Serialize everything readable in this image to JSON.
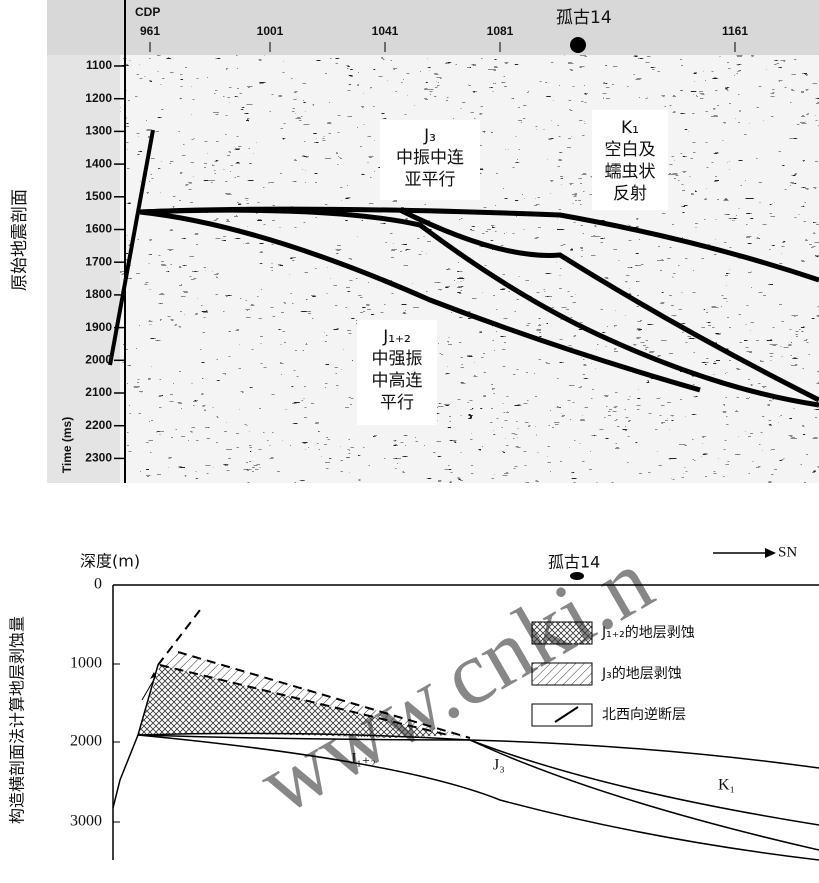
{
  "seismic": {
    "cdp_label": "CDP",
    "cdp_ticks": [
      "961",
      "1001",
      "1041",
      "1081",
      "1161"
    ],
    "well": "孤古14",
    "y_title": "原始地震剖面",
    "time_label": "Time (ms)",
    "time_ticks": [
      "1100",
      "1200",
      "1300",
      "1400",
      "1500",
      "1600",
      "1700",
      "1800",
      "1900",
      "2000",
      "2100",
      "2200",
      "2300"
    ],
    "annotations": [
      {
        "lines": [
          "J₃",
          "中振中连",
          "亚平行"
        ]
      },
      {
        "lines": [
          "K₁",
          "空白及",
          "蠕虫状",
          "反射"
        ]
      },
      {
        "lines": [
          "J₁₊₂",
          "中强振",
          "中高连",
          "平行"
        ]
      }
    ]
  },
  "section": {
    "depth_label": "深度(m)",
    "depth_ticks": [
      "0",
      "1000",
      "2000",
      "3000"
    ],
    "well": "孤古14",
    "direction": "SN",
    "y_title": "构造横剖面法计算地层剥蚀量",
    "legend": [
      "J₁₊₂的地层剥蚀",
      "J₃的地层剥蚀",
      "北西向逆断层"
    ],
    "layer_labels": [
      "J₁₊₂",
      "J₃",
      "K₁"
    ],
    "watermark": "www.cnki.n"
  }
}
